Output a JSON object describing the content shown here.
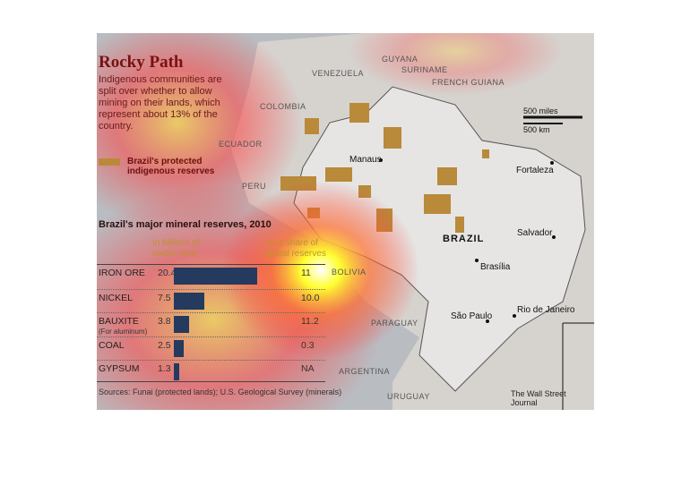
{
  "title": "Rocky Path",
  "intro": "Indigenous communities are split over whether to allow mining on their lands, which represent about 13% of the country.",
  "legend": {
    "label": "Brazil's protected indigenous reserves",
    "color": "#b98a3a"
  },
  "countries": {
    "guyana": "GUYANA",
    "suriname": "SURINAME",
    "french_guiana": "FRENCH GUIANA",
    "venezuela": "VENEZUELA",
    "colombia": "COLOMBIA",
    "ecuador": "ECUADOR",
    "peru": "PERU",
    "bolivia": "BOLIVIA",
    "paraguay": "PARAGUAY",
    "argentina": "ARGENTINA",
    "uruguay": "URUGUAY",
    "brazil": "BRAZIL"
  },
  "cities": {
    "manaus": "Manaus",
    "fortaleza": "Fortaleza",
    "salvador": "Salvador",
    "brasilia": "Brasília",
    "sao_paulo": "São Paulo",
    "rio": "Rio de Janeiro"
  },
  "scale": {
    "miles": "500 miles",
    "km": "500 km"
  },
  "chart_data": {
    "type": "bar",
    "title": "Brazil's major mineral reserves, 2010",
    "value_header": "In billions of metric tons",
    "share_header": "As a share of global reserves",
    "rows": [
      {
        "name": "IRON ORE",
        "sub": "",
        "value": 20.4,
        "value_label": "20.4",
        "share": "11"
      },
      {
        "name": "NICKEL",
        "sub": "",
        "value": 7.5,
        "value_label": "7.5",
        "share": "10.0"
      },
      {
        "name": "BAUXITE",
        "sub": "(For aluminum)",
        "value": 3.8,
        "value_label": "3.8",
        "share": "11.2"
      },
      {
        "name": "COAL",
        "sub": "",
        "value": 2.5,
        "value_label": "2.5",
        "share": "0.3"
      },
      {
        "name": "GYPSUM",
        "sub": "",
        "value": 1.3,
        "value_label": "1.3",
        "share": "NA"
      }
    ],
    "bar_color": "#243a5e"
  },
  "source": "Sources: Funai (protected lands); U.S. Geological Survey (minerals)",
  "credit": "The Wall Street Journal"
}
